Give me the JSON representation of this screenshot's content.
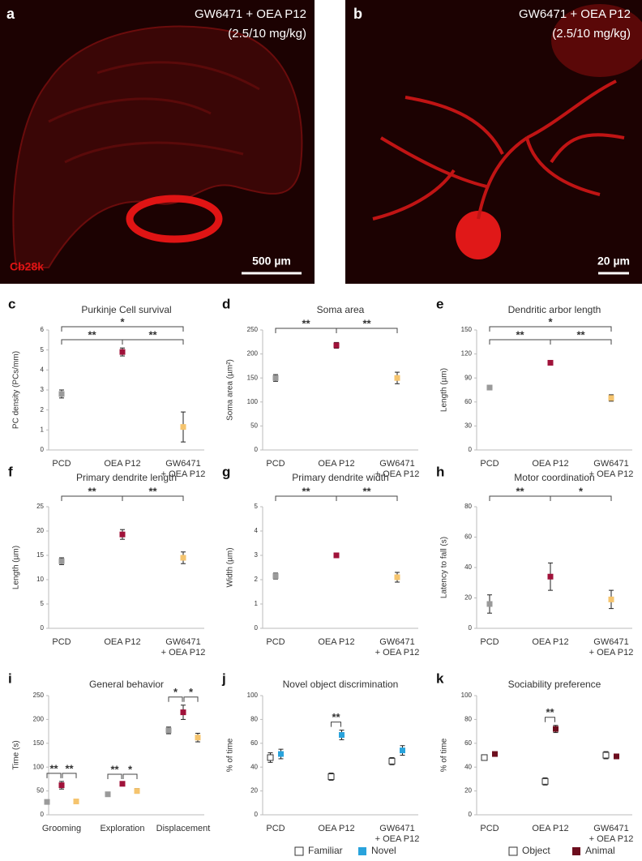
{
  "images": [
    {
      "letter": "a",
      "label": "GW6471 + OEA P12",
      "dose": "(2.5/10 mg/kg)",
      "stain": "Cb28k",
      "scale": "500 µm"
    },
    {
      "letter": "b",
      "label": "GW6471 + OEA P12",
      "dose": "(2.5/10 mg/kg)",
      "scale": "20 µm"
    }
  ],
  "chart_data": [
    {
      "panel": "c",
      "type": "dot",
      "title": "Purkinje Cell survival",
      "y_label": "PC density (PCs/mm)",
      "categories": [
        "PCD",
        "OEA P12",
        "GW6471\n+ OEA P12"
      ],
      "series": [
        {
          "colors": [
            "#9a9a9a",
            "#a0123a",
            "#f5c46e"
          ],
          "values": [
            2.8,
            4.9,
            1.15
          ],
          "errors": [
            0.2,
            0.2,
            0.75
          ]
        }
      ],
      "ylim": [
        0,
        6
      ],
      "yticks": [
        0,
        1,
        2,
        3,
        4,
        5,
        6
      ],
      "brackets": [
        {
          "between": [
            "PCD",
            "OEA P12"
          ],
          "label": "**"
        },
        {
          "between": [
            "OEA P12",
            "GW6471\n+ OEA P12"
          ],
          "label": "**"
        },
        {
          "between": [
            "PCD",
            "GW6471\n+ OEA P12"
          ],
          "label": "*"
        }
      ]
    },
    {
      "panel": "d",
      "type": "dot",
      "title": "Soma area",
      "y_label": "Soma area (µm²)",
      "categories": [
        "PCD",
        "OEA P12",
        "GW6471\n+ OEA P12"
      ],
      "series": [
        {
          "colors": [
            "#9a9a9a",
            "#a0123a",
            "#f5c46e"
          ],
          "values": [
            150,
            218,
            150
          ],
          "errors": [
            7,
            6,
            12
          ]
        }
      ],
      "ylim": [
        0,
        250
      ],
      "yticks": [
        0,
        50,
        100,
        150,
        200,
        250
      ],
      "brackets": [
        {
          "between": [
            "PCD",
            "OEA P12"
          ],
          "label": "**"
        },
        {
          "between": [
            "OEA P12",
            "GW6471\n+ OEA P12"
          ],
          "label": "**"
        }
      ]
    },
    {
      "panel": "e",
      "type": "dot",
      "title": "Dendritic arbor length",
      "y_label": "Length (µm)",
      "categories": [
        "PCD",
        "OEA P12",
        "GW6471\n+ OEA P12"
      ],
      "series": [
        {
          "colors": [
            "#9a9a9a",
            "#a0123a",
            "#f5c46e"
          ],
          "values": [
            78,
            109,
            65
          ],
          "errors": [
            2,
            2,
            4
          ]
        }
      ],
      "ylim": [
        0,
        150
      ],
      "yticks": [
        0,
        30,
        60,
        90,
        120,
        150
      ],
      "brackets": [
        {
          "between": [
            "PCD",
            "OEA P12"
          ],
          "label": "**"
        },
        {
          "between": [
            "OEA P12",
            "GW6471\n+ OEA P12"
          ],
          "label": "**"
        },
        {
          "between": [
            "PCD",
            "GW6471\n+ OEA P12"
          ],
          "label": "*"
        }
      ]
    },
    {
      "panel": "f",
      "type": "dot",
      "title": "Primary dendrite length",
      "y_label": "Length (µm)",
      "categories": [
        "PCD",
        "OEA P12",
        "GW6471\n+ OEA P12"
      ],
      "series": [
        {
          "colors": [
            "#9a9a9a",
            "#a0123a",
            "#f5c46e"
          ],
          "values": [
            13.8,
            19.3,
            14.5
          ],
          "errors": [
            0.7,
            1,
            1.2
          ]
        }
      ],
      "ylim": [
        0,
        25
      ],
      "yticks": [
        0,
        5,
        10,
        15,
        20,
        25
      ],
      "brackets": [
        {
          "between": [
            "PCD",
            "OEA P12"
          ],
          "label": "**"
        },
        {
          "between": [
            "OEA P12",
            "GW6471\n+ OEA P12"
          ],
          "label": "**"
        }
      ]
    },
    {
      "panel": "g",
      "type": "dot",
      "title": "Primary dendrite width",
      "y_label": "Width (µm)",
      "categories": [
        "PCD",
        "OEA P12",
        "GW6471\n+ OEA P12"
      ],
      "series": [
        {
          "colors": [
            "#9a9a9a",
            "#a0123a",
            "#f5c46e"
          ],
          "values": [
            2.15,
            3.0,
            2.1
          ],
          "errors": [
            0.12,
            0.05,
            0.2
          ]
        }
      ],
      "ylim": [
        0,
        5
      ],
      "yticks": [
        0,
        1,
        2,
        3,
        4,
        5
      ],
      "brackets": [
        {
          "between": [
            "PCD",
            "OEA P12"
          ],
          "label": "**"
        },
        {
          "between": [
            "OEA P12",
            "GW6471\n+ OEA P12"
          ],
          "label": "**"
        }
      ]
    },
    {
      "panel": "h",
      "type": "dot",
      "title": "Motor coordination",
      "y_label": "Latency to fall (s)",
      "categories": [
        "PCD",
        "OEA P12",
        "GW6471\n+ OEA P12"
      ],
      "series": [
        {
          "colors": [
            "#9a9a9a",
            "#a0123a",
            "#f5c46e"
          ],
          "values": [
            16,
            34,
            19
          ],
          "errors": [
            6,
            9,
            6
          ]
        }
      ],
      "ylim": [
        0,
        80
      ],
      "yticks": [
        0,
        20,
        40,
        60,
        80
      ],
      "brackets": [
        {
          "between": [
            "PCD",
            "OEA P12"
          ],
          "label": "**"
        },
        {
          "between": [
            "OEA P12",
            "GW6471\n+ OEA P12"
          ],
          "label": "*"
        }
      ]
    },
    {
      "panel": "i",
      "type": "dot",
      "title": "General behavior",
      "y_label": "Time (s)",
      "categories": [
        "Grooming",
        "Exploration",
        "Displacement"
      ],
      "series": [
        {
          "color": "#9a9a9a",
          "values": [
            27,
            43,
            177
          ],
          "errors": [
            2,
            3,
            7
          ]
        },
        {
          "color": "#a0123a",
          "values": [
            62,
            65,
            215
          ],
          "errors": [
            8,
            3,
            15
          ]
        },
        {
          "color": "#f5c46e",
          "values": [
            28,
            50,
            162
          ],
          "errors": [
            2,
            5,
            9
          ]
        }
      ],
      "ylim": [
        0,
        250
      ],
      "yticks": [
        0,
        50,
        100,
        150,
        200,
        250
      ],
      "brackets": [
        {
          "within": "Grooming",
          "labels": [
            "**",
            "**"
          ]
        },
        {
          "within": "Exploration",
          "labels": [
            "**",
            "*"
          ]
        },
        {
          "within": "Displacement",
          "labels": [
            "*",
            "*"
          ]
        }
      ]
    },
    {
      "panel": "j",
      "type": "dot",
      "title": "Novel object discrimination",
      "y_label": "% of time",
      "categories": [
        "PCD",
        "OEA P12",
        "GW6471\n+ OEA P12"
      ],
      "series": [
        {
          "name": "Familiar",
          "color": "#ffffff",
          "values": [
            48,
            32,
            45
          ],
          "errors": [
            4,
            3,
            3
          ]
        },
        {
          "name": "Novel",
          "color": "#29a3dc",
          "values": [
            51,
            67,
            54
          ],
          "errors": [
            4,
            4,
            4
          ]
        }
      ],
      "ylim": [
        0,
        100
      ],
      "yticks": [
        0,
        20,
        40,
        60,
        80,
        100
      ],
      "brackets": [
        {
          "within": "OEA P12",
          "labels": [
            "**"
          ]
        }
      ]
    },
    {
      "panel": "k",
      "type": "dot",
      "title": "Sociability preference",
      "y_label": "% of time",
      "categories": [
        "PCD",
        "OEA P12",
        "GW6471\n+ OEA P12"
      ],
      "series": [
        {
          "name": "Object",
          "color": "#ffffff",
          "values": [
            48,
            28,
            50
          ],
          "errors": [
            2,
            3,
            3
          ]
        },
        {
          "name": "Animal",
          "color": "#6d0e1e",
          "values": [
            51,
            72,
            49
          ],
          "errors": [
            2,
            3,
            2
          ]
        }
      ],
      "ylim": [
        0,
        100
      ],
      "yticks": [
        0,
        20,
        40,
        60,
        80,
        100
      ],
      "brackets": [
        {
          "within": "OEA P12",
          "labels": [
            "**"
          ]
        }
      ]
    }
  ]
}
